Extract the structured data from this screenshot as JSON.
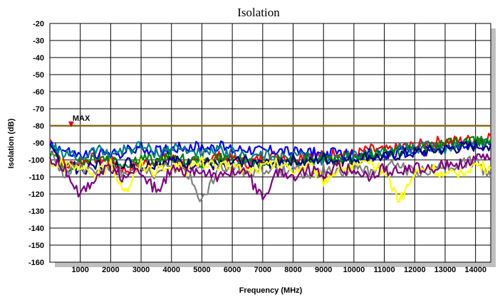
{
  "chart_data": {
    "type": "line",
    "title": "Isolation",
    "xlabel": "Frequency (MHz)",
    "ylabel": "Isolation (dB)",
    "xlim": [
      0,
      14500
    ],
    "ylim": [
      -160,
      -20
    ],
    "x_ticks": [
      1000,
      2000,
      3000,
      4000,
      5000,
      6000,
      7000,
      8000,
      9000,
      10000,
      11000,
      12000,
      13000,
      14000
    ],
    "x_tick_labels": [
      "1000",
      "2000",
      "3000",
      "4000",
      "5000",
      "6000",
      "7000",
      "8000",
      "9000",
      "10000",
      "11000",
      "12000",
      "13000",
      "14000"
    ],
    "y_ticks": [
      -20,
      -30,
      -40,
      -50,
      -60,
      -70,
      -80,
      -90,
      -100,
      -110,
      -120,
      -130,
      -140,
      -150,
      -160
    ],
    "y_tick_labels": [
      "-20",
      "-30",
      "-40",
      "-50",
      "-60",
      "-70",
      "-80",
      "-90",
      "-100",
      "-110",
      "-120",
      "-130",
      "-140",
      "-150",
      "-160"
    ],
    "grid": true,
    "legend": "none",
    "limit_line": {
      "label": "MAX",
      "y": -80,
      "color": "#8B6914",
      "marker_x": 700,
      "marker_color": "#e00000"
    },
    "series": [
      {
        "color": "#ff0000",
        "x": [
          0,
          500,
          1000,
          1500,
          2000,
          2500,
          3000,
          3500,
          4000,
          4500,
          5000,
          5500,
          6000,
          6500,
          7000,
          7500,
          8000,
          8500,
          9000,
          9500,
          10000,
          10500,
          11000,
          11500,
          12000,
          12500,
          13000,
          13500,
          14000,
          14500
        ],
        "values": [
          -88,
          -104,
          -101,
          -99,
          -101,
          -106,
          -103,
          -100,
          -99,
          -104,
          -101,
          -98,
          -100,
          -102,
          -99,
          -97,
          -99,
          -96,
          -98,
          -95,
          -97,
          -94,
          -95,
          -93,
          -92,
          -90,
          -89,
          -89,
          -88,
          -86
        ]
      },
      {
        "color": "#0000ff",
        "x": [
          0,
          500,
          1000,
          1500,
          2000,
          2500,
          3000,
          3500,
          4000,
          4500,
          5000,
          5500,
          6000,
          6500,
          7000,
          7500,
          8000,
          8500,
          9000,
          9500,
          10000,
          10500,
          11000,
          11500,
          12000,
          12500,
          13000,
          13500,
          14000,
          14500
        ],
        "values": [
          -90,
          -95,
          -98,
          -96,
          -97,
          -95,
          -93,
          -95,
          -93,
          -92,
          -93,
          -92,
          -94,
          -93,
          -95,
          -94,
          -96,
          -95,
          -97,
          -96,
          -98,
          -97,
          -98,
          -96,
          -95,
          -94,
          -94,
          -93,
          -92,
          -91
        ]
      },
      {
        "color": "#008080",
        "x": [
          0,
          500,
          1000,
          1500,
          2000,
          2500,
          3000,
          3500,
          4000,
          4500,
          5000,
          5500,
          6000,
          6500,
          7000,
          7500,
          8000,
          8500,
          9000,
          9500,
          10000,
          10500,
          11000,
          11500,
          12000,
          12500,
          13000,
          13500,
          14000,
          14500
        ],
        "values": [
          -92,
          -97,
          -99,
          -94,
          -96,
          -94,
          -92,
          -96,
          -93,
          -94,
          -97,
          -95,
          -96,
          -99,
          -97,
          -100,
          -98,
          -99,
          -101,
          -99,
          -98,
          -97,
          -95,
          -93,
          -94,
          -92,
          -93,
          -91,
          -90,
          -89
        ]
      },
      {
        "color": "#008000",
        "x": [
          0,
          500,
          1000,
          1500,
          2000,
          2500,
          3000,
          3500,
          4000,
          4500,
          5000,
          5500,
          6000,
          6500,
          7000,
          7500,
          8000,
          8500,
          9000,
          9500,
          10000,
          10500,
          11000,
          11500,
          12000,
          12500,
          13000,
          13500,
          14000,
          14500
        ],
        "values": [
          -96,
          -105,
          -102,
          -98,
          -100,
          -103,
          -99,
          -101,
          -98,
          -100,
          -102,
          -99,
          -101,
          -100,
          -103,
          -100,
          -101,
          -99,
          -98,
          -100,
          -99,
          -97,
          -96,
          -95,
          -94,
          -92,
          -91,
          -90,
          -89,
          -88
        ]
      },
      {
        "color": "#000080",
        "x": [
          0,
          500,
          1000,
          1500,
          2000,
          2500,
          3000,
          3500,
          4000,
          4500,
          5000,
          5500,
          6000,
          6500,
          7000,
          7500,
          8000,
          8500,
          9000,
          9500,
          10000,
          10500,
          11000,
          11500,
          12000,
          12500,
          13000,
          13500,
          14000,
          14500
        ],
        "values": [
          -94,
          -102,
          -106,
          -103,
          -105,
          -101,
          -104,
          -102,
          -100,
          -103,
          -101,
          -104,
          -102,
          -100,
          -103,
          -101,
          -100,
          -102,
          -99,
          -101,
          -100,
          -98,
          -99,
          -97,
          -96,
          -95,
          -94,
          -93,
          -92,
          -91
        ]
      },
      {
        "color": "#808080",
        "x": [
          0,
          500,
          1000,
          1500,
          2000,
          2500,
          3000,
          3500,
          4000,
          4500,
          5000,
          5500,
          6000,
          6500,
          7000,
          7500,
          8000,
          8500,
          9000,
          9500,
          10000,
          10500,
          11000,
          11500,
          12000,
          12500,
          13000,
          13500,
          14000,
          14500
        ],
        "values": [
          -98,
          -108,
          -104,
          -106,
          -103,
          -109,
          -105,
          -108,
          -104,
          -107,
          -124,
          -106,
          -103,
          -108,
          -105,
          -107,
          -104,
          -110,
          -106,
          -108,
          -105,
          -107,
          -104,
          -103,
          -108,
          -106,
          -104,
          -102,
          -101,
          -110
        ]
      },
      {
        "color": "#ffff00",
        "x": [
          0,
          500,
          1000,
          1500,
          2000,
          2500,
          3000,
          3500,
          4000,
          4500,
          5000,
          5500,
          6000,
          6500,
          7000,
          7500,
          8000,
          8500,
          9000,
          9500,
          10000,
          10500,
          11000,
          11500,
          12000,
          12500,
          13000,
          13500,
          14000,
          14500
        ],
        "values": [
          -100,
          -104,
          -106,
          -108,
          -103,
          -118,
          -102,
          -107,
          -104,
          -106,
          -101,
          -105,
          -103,
          -107,
          -104,
          -102,
          -106,
          -103,
          -112,
          -105,
          -104,
          -103,
          -106,
          -124,
          -108,
          -104,
          -110,
          -107,
          -103,
          -105
        ]
      },
      {
        "color": "#800080",
        "x": [
          0,
          500,
          1000,
          1500,
          2000,
          2500,
          3000,
          3500,
          4000,
          4500,
          5000,
          5500,
          6000,
          6500,
          7000,
          7500,
          8000,
          8500,
          9000,
          9500,
          10000,
          10500,
          11000,
          11500,
          12000,
          12500,
          13000,
          13500,
          14000,
          14500
        ],
        "values": [
          -99,
          -106,
          -120,
          -110,
          -104,
          -112,
          -107,
          -118,
          -106,
          -109,
          -105,
          -111,
          -106,
          -109,
          -122,
          -107,
          -110,
          -106,
          -108,
          -104,
          -107,
          -110,
          -105,
          -108,
          -104,
          -106,
          -103,
          -102,
          -100,
          -99
        ]
      }
    ]
  }
}
